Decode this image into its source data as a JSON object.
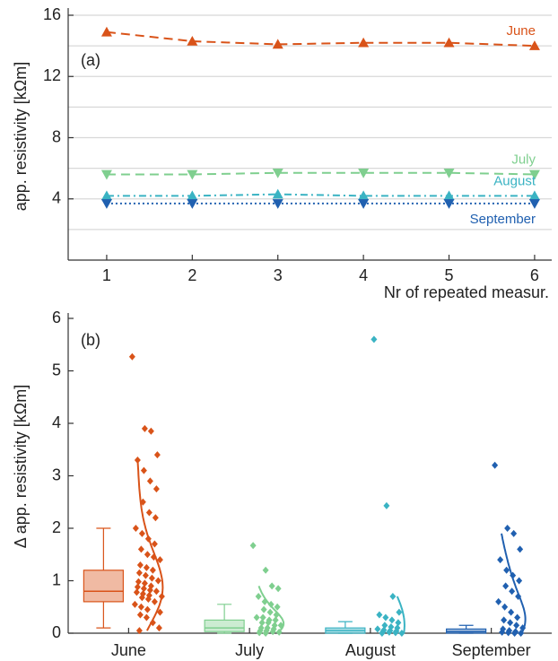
{
  "chart_data": [
    {
      "type": "line",
      "panel_label": "(a)",
      "x_label": "Nr of repeated measur.",
      "y_label": "app. resistivity [kΩm]",
      "x": [
        1,
        2,
        3,
        4,
        5,
        6
      ],
      "xlim": [
        0.55,
        6.2
      ],
      "xticks": [
        1,
        2,
        3,
        4,
        5,
        6
      ],
      "ylim": [
        0,
        16
      ],
      "yticks": [
        4,
        8,
        12,
        16
      ],
      "minor_yticks": [
        2,
        6,
        10,
        14
      ],
      "grid": true,
      "series": [
        {
          "name": "June",
          "color": "#d95319",
          "marker": "triangle-up",
          "linestyle": "dashed",
          "values": [
            14.9,
            14.3,
            14.1,
            14.2,
            14.2,
            14.0
          ]
        },
        {
          "name": "July",
          "color": "#7fcf8f",
          "marker": "triangle-down",
          "linestyle": "dashed",
          "values": [
            5.6,
            5.6,
            5.7,
            5.7,
            5.7,
            5.6
          ]
        },
        {
          "name": "August",
          "color": "#3ab3c3",
          "marker": "triangle-up",
          "linestyle": "dashdot",
          "values": [
            4.2,
            4.2,
            4.3,
            4.2,
            4.2,
            4.2
          ]
        },
        {
          "name": "September",
          "color": "#2060b0",
          "marker": "triangle-down",
          "linestyle": "dotted",
          "values": [
            3.7,
            3.7,
            3.7,
            3.7,
            3.7,
            3.7
          ]
        }
      ]
    },
    {
      "type": "box",
      "panel_label": "(b)",
      "y_label": "Δ app. resistivity [kΩm]",
      "categories": [
        "June",
        "July",
        "August",
        "September"
      ],
      "colors": [
        "#d95319",
        "#7fcf8f",
        "#3ab3c3",
        "#2060b0"
      ],
      "ylim": [
        0,
        6
      ],
      "yticks": [
        0,
        1,
        2,
        3,
        4,
        5,
        6
      ],
      "boxes": [
        {
          "min": 0.1,
          "q1": 0.6,
          "median": 0.8,
          "q3": 1.2,
          "max": 2.0
        },
        {
          "min": 0,
          "q1": 0.03,
          "median": 0.1,
          "q3": 0.25,
          "max": 0.55
        },
        {
          "min": 0,
          "q1": 0,
          "median": 0.05,
          "q3": 0.1,
          "max": 0.22
        },
        {
          "min": 0,
          "q1": 0,
          "median": 0.03,
          "q3": 0.08,
          "max": 0.15
        }
      ],
      "points": [
        [
          5.27,
          3.9,
          3.85,
          3.4,
          3.3,
          3.1,
          2.9,
          2.75,
          2.5,
          2.3,
          2.2,
          2.0,
          1.9,
          1.8,
          1.7,
          1.6,
          1.5,
          1.45,
          1.4,
          1.3,
          1.25,
          1.2,
          1.15,
          1.1,
          1.05,
          1.0,
          0.98,
          0.95,
          0.9,
          0.88,
          0.85,
          0.82,
          0.8,
          0.78,
          0.75,
          0.72,
          0.7,
          0.68,
          0.65,
          0.6,
          0.55,
          0.5,
          0.45,
          0.4,
          0.35,
          0.3,
          0.2,
          0.1,
          0.05
        ],
        [
          1.67,
          1.2,
          0.9,
          0.85,
          0.7,
          0.6,
          0.55,
          0.5,
          0.45,
          0.4,
          0.35,
          0.3,
          0.3,
          0.25,
          0.25,
          0.2,
          0.2,
          0.15,
          0.15,
          0.1,
          0.1,
          0.08,
          0.05,
          0.05,
          0.03,
          0.02,
          0.01,
          0
        ],
        [
          5.6,
          2.43,
          0.7,
          0.4,
          0.35,
          0.3,
          0.25,
          0.2,
          0.15,
          0.12,
          0.1,
          0.08,
          0.06,
          0.05,
          0.04,
          0.03,
          0.02,
          0.01,
          0,
          0
        ],
        [
          3.2,
          2.0,
          1.9,
          1.6,
          1.4,
          1.2,
          1.1,
          1.0,
          0.9,
          0.8,
          0.7,
          0.6,
          0.5,
          0.4,
          0.3,
          0.25,
          0.2,
          0.15,
          0.1,
          0.08,
          0.05,
          0.03,
          0.02,
          0.01,
          0,
          0
        ]
      ]
    }
  ]
}
